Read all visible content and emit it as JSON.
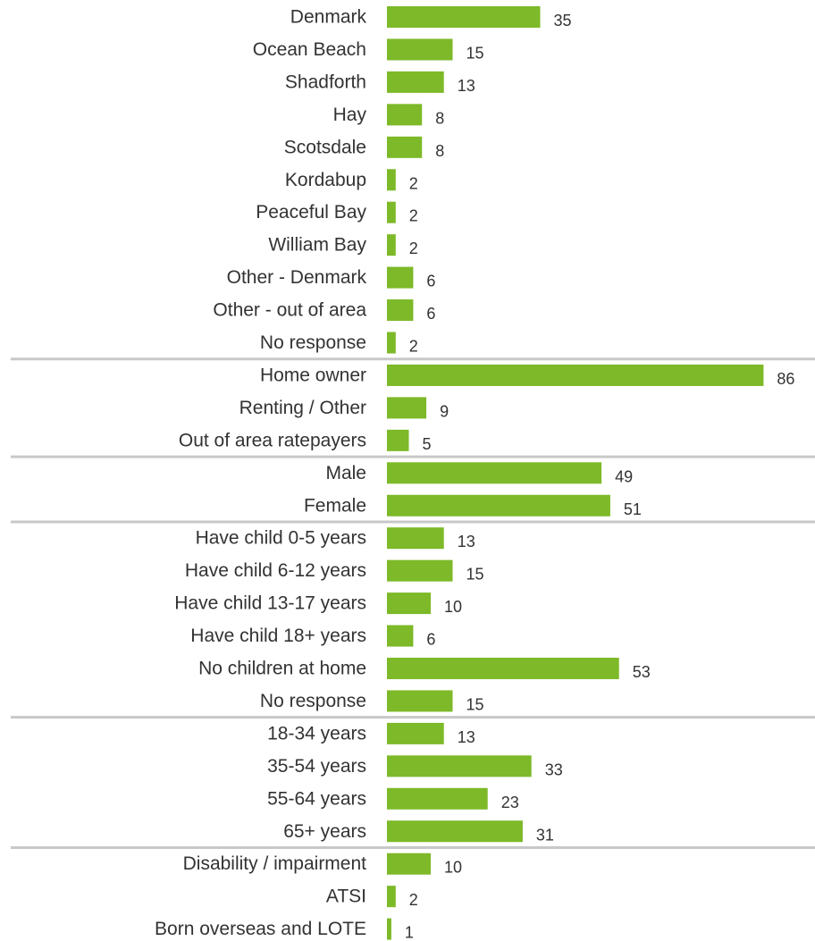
{
  "chart_data": {
    "type": "bar",
    "orientation": "horizontal",
    "color": "#7db928",
    "grid": false,
    "legend": "none",
    "groups": [
      {
        "categories": [
          "Denmark",
          "Ocean Beach",
          "Shadforth",
          "Hay",
          "Scotsdale",
          "Kordabup",
          "Peaceful Bay",
          "William Bay",
          "Other - Denmark",
          "Other - out of area",
          "No response"
        ],
        "values": [
          35,
          15,
          13,
          8,
          8,
          2,
          2,
          2,
          6,
          6,
          2
        ]
      },
      {
        "categories": [
          "Home owner",
          "Renting / Other",
          "Out of area ratepayers"
        ],
        "values": [
          86,
          9,
          5
        ]
      },
      {
        "categories": [
          "Male",
          "Female"
        ],
        "values": [
          49,
          51
        ]
      },
      {
        "categories": [
          "Have child 0-5 years",
          "Have child 6-12 years",
          "Have child 13-17 years",
          "Have child 18+ years",
          "No children at home",
          "No response"
        ],
        "values": [
          13,
          15,
          10,
          6,
          53,
          15
        ]
      },
      {
        "categories": [
          "18-34 years",
          "35-54 years",
          "55-64 years",
          "65+ years"
        ],
        "values": [
          13,
          33,
          23,
          31
        ]
      },
      {
        "categories": [
          "Disability / impairment",
          "ATSI",
          "Born overseas and LOTE"
        ],
        "values": [
          10,
          2,
          1
        ]
      }
    ]
  }
}
